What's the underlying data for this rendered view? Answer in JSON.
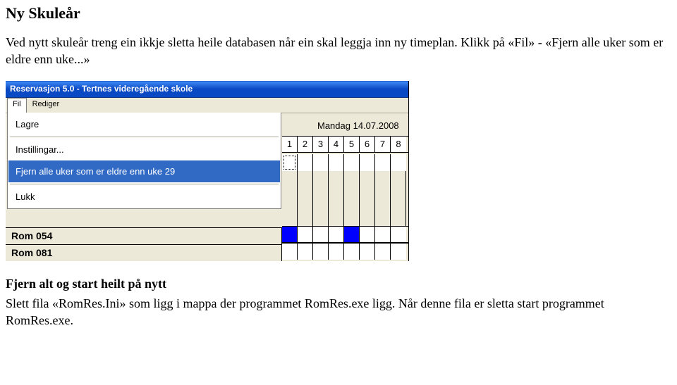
{
  "doc": {
    "heading1": "Ny Skuleår",
    "para1": "Ved nytt skuleår treng ein ikkje sletta heile databasen når ein skal leggja inn ny timeplan. Klikk på «Fil» - «Fjern alle uker som er eldre enn uke...»",
    "heading2": "Fjern alt og start heilt på nytt",
    "para2": "Slett fila «RomRes.Ini» som ligg i mappa der programmet RomRes.exe ligg. Når denne fila er sletta start programmet RomRes.exe."
  },
  "window": {
    "title": "Reservasjon 5.0 - Tertnes videregående skole",
    "menu": {
      "fil": "Fil",
      "rediger": "Rediger"
    },
    "dropdown": {
      "lagre": "Lagre",
      "instillingar": "Instillingar...",
      "fjern": "Fjern alle uker som er eldre enn uke 29",
      "lukk": "Lukk"
    },
    "date_label": "Mandag 14.07.2008",
    "cols": [
      "1",
      "2",
      "3",
      "4",
      "5",
      "6",
      "7",
      "8"
    ],
    "rooms": [
      "Rom 054",
      "Rom 081"
    ],
    "colors": {
      "titlebar_top": "#1b5fd0",
      "titlebar_mid": "#3b84f0",
      "titlebar_bot": "#0a49c4",
      "chrome": "#ece9d8",
      "highlight": "#316ac5",
      "cell_fill": "#0000ff"
    },
    "grid": {
      "row1_classes": [
        "dotted",
        "",
        "",
        "",
        "",
        "",
        "",
        ""
      ],
      "row2_classes": [
        "",
        "",
        "",
        "",
        "",
        "",
        "",
        ""
      ],
      "row3_classes": [
        "",
        "",
        "",
        "",
        "",
        "",
        "",
        ""
      ],
      "row4_classes": [
        "",
        "",
        "",
        "",
        "",
        "",
        "",
        ""
      ],
      "room1_classes": [
        "filled",
        "",
        "",
        "",
        "filled",
        "",
        "",
        ""
      ],
      "room2_classes": [
        "",
        "",
        "",
        "",
        "",
        "",
        "",
        ""
      ]
    }
  }
}
